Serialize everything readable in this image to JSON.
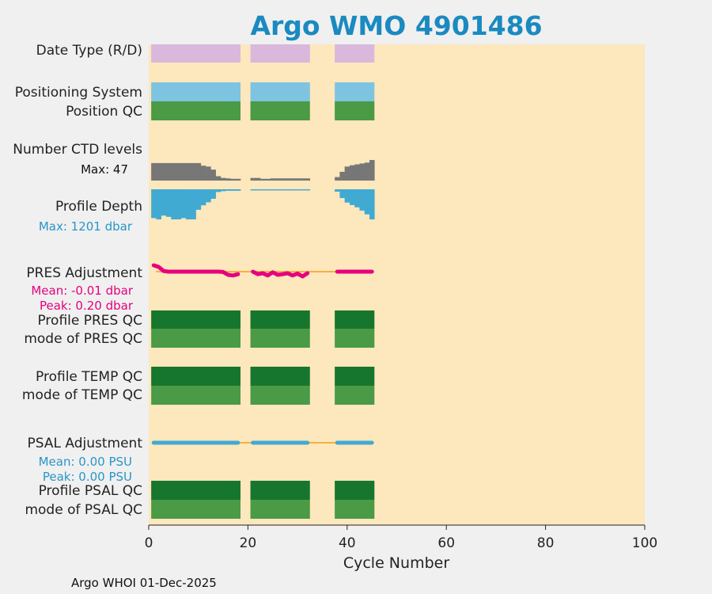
{
  "colors": {
    "background": "#f0f0f0",
    "plot_bg": "#fde7bd",
    "title": "#1a8ac0",
    "date_type": "#d9b8dc",
    "positioning": "#7ec4e0",
    "qc_good": "#4a9a46",
    "qc_dark": "#17762d",
    "ctd": "#777777",
    "depth": "#41aad2",
    "pres_adj": "#e6007e",
    "psal_adj": "#41aad2",
    "adj_line": "#f5b041",
    "depth_max_text": "#2896c8",
    "pres_text": "#e6007e",
    "psal_text": "#2896c8"
  },
  "chart_data": {
    "type": "bar",
    "title": "Argo WMO 4901486",
    "xlabel": "Cycle Number",
    "xlim": [
      0,
      100
    ],
    "xticks": [
      "0",
      "20",
      "40",
      "60",
      "80",
      "100"
    ],
    "rows": {
      "date_type": "Date Type (R/D)",
      "positioning": "Positioning System",
      "position_qc": "Position QC",
      "ctd_levels": "Number CTD levels",
      "ctd_max": "Max: 47",
      "profile_depth": "Profile Depth",
      "depth_max": "Max: 1201 dbar",
      "pres_adj": "PRES Adjustment",
      "pres_mean": "Mean: -0.01 dbar",
      "pres_peak": "Peak: 0.20 dbar",
      "profile_pres_qc": "Profile PRES QC",
      "mode_pres_qc": "mode of PRES QC",
      "profile_temp_qc": "Profile TEMP QC",
      "mode_temp_qc": "mode of TEMP QC",
      "psal_adj": "PSAL Adjustment",
      "psal_mean": "Mean: 0.00 PSU",
      "psal_peak": "Peak: 0.00 PSU",
      "profile_psal_qc": "Profile PSAL QC",
      "mode_psal_qc": "mode of PSAL QC"
    },
    "cycle_segments": [
      [
        0.5,
        18.5
      ],
      [
        20.5,
        32.5
      ],
      [
        37.5,
        45.5
      ]
    ],
    "ctd_levels": {
      "cycles": [
        1,
        2,
        3,
        4,
        5,
        6,
        7,
        8,
        9,
        10,
        11,
        12,
        13,
        14,
        15,
        16,
        17,
        18,
        21,
        22,
        23,
        24,
        25,
        26,
        27,
        28,
        29,
        30,
        31,
        32,
        38,
        39,
        40,
        41,
        42,
        43,
        44,
        45
      ],
      "values": [
        40,
        40,
        40,
        40,
        40,
        40,
        40,
        40,
        40,
        40,
        34,
        32,
        25,
        10,
        6,
        5,
        4,
        4,
        6,
        6,
        4,
        4,
        5,
        5,
        5,
        5,
        5,
        5,
        5,
        5,
        8,
        20,
        32,
        35,
        37,
        39,
        41,
        47
      ],
      "max": 47
    },
    "profile_depth": {
      "cycles": [
        1,
        2,
        3,
        4,
        5,
        6,
        7,
        8,
        9,
        10,
        11,
        12,
        13,
        14,
        15,
        16,
        17,
        18,
        21,
        22,
        23,
        24,
        25,
        26,
        27,
        28,
        29,
        30,
        31,
        32,
        38,
        39,
        40,
        41,
        42,
        43,
        44,
        45
      ],
      "values": [
        1150,
        1201,
        1050,
        1100,
        1201,
        1201,
        1150,
        1201,
        1201,
        820,
        640,
        520,
        380,
        110,
        75,
        60,
        60,
        60,
        45,
        45,
        45,
        45,
        45,
        45,
        45,
        45,
        45,
        45,
        45,
        45,
        95,
        350,
        530,
        630,
        720,
        850,
        1000,
        1201
      ],
      "max": 1201
    },
    "pres_adjustment": {
      "cycles": [
        1,
        2,
        3,
        4,
        5,
        6,
        7,
        8,
        9,
        10,
        11,
        12,
        13,
        14,
        15,
        16,
        17,
        18,
        21,
        22,
        23,
        24,
        25,
        26,
        27,
        28,
        29,
        30,
        31,
        32,
        38,
        39,
        40,
        41,
        42,
        43,
        44,
        45
      ],
      "values": [
        0.2,
        0.15,
        0.02,
        0.0,
        0.0,
        0.0,
        0.0,
        0.0,
        0.0,
        0.0,
        0.0,
        0.0,
        0.0,
        0.0,
        -0.01,
        -0.1,
        -0.12,
        -0.08,
        0.0,
        -0.08,
        -0.05,
        -0.12,
        -0.02,
        -0.1,
        -0.08,
        -0.05,
        -0.12,
        -0.06,
        -0.15,
        -0.05,
        0.0,
        0.0,
        0.0,
        0.0,
        0.0,
        0.0,
        0.0,
        0.0
      ],
      "mean": -0.01,
      "peak": 0.2
    },
    "psal_adjustment": {
      "cycles": [
        1,
        2,
        3,
        4,
        5,
        6,
        7,
        8,
        9,
        10,
        11,
        12,
        13,
        14,
        15,
        16,
        17,
        18,
        21,
        22,
        23,
        24,
        25,
        26,
        27,
        28,
        29,
        30,
        31,
        32,
        38,
        39,
        40,
        41,
        42,
        43,
        44,
        45
      ],
      "values": [
        0,
        0,
        0,
        0,
        0,
        0,
        0,
        0,
        0,
        0,
        0,
        0,
        0,
        0,
        0,
        0,
        0,
        0,
        0,
        0,
        0,
        0,
        0,
        0,
        0,
        0,
        0,
        0,
        0,
        0,
        0,
        0,
        0,
        0,
        0,
        0,
        0,
        0
      ],
      "mean": 0.0,
      "peak": 0.0
    }
  },
  "footer": "Argo WHOI 01-Dec-2025"
}
